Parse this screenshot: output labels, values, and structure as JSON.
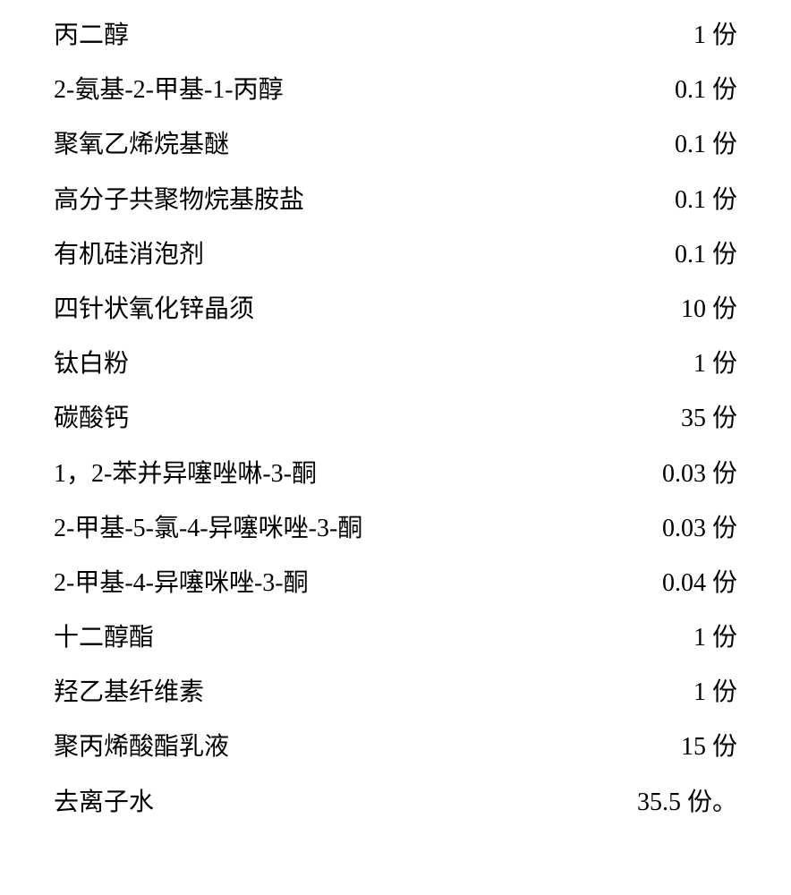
{
  "rows": [
    {
      "name": "丙二醇",
      "value": "1 份"
    },
    {
      "name": "2-氨基-2-甲基-1-丙醇",
      "value": "0.1 份"
    },
    {
      "name": "聚氧乙烯烷基醚",
      "value": "0.1 份"
    },
    {
      "name": "高分子共聚物烷基胺盐",
      "value": "0.1 份"
    },
    {
      "name": "有机硅消泡剂",
      "value": "0.1 份"
    },
    {
      "name": "四针状氧化锌晶须",
      "value": "10 份"
    },
    {
      "name": "钛白粉",
      "value": "1 份"
    },
    {
      "name": "碳酸钙",
      "value": "35 份"
    },
    {
      "name": "1，2-苯并异噻唑啉-3-酮",
      "value": "0.03 份"
    },
    {
      "name": "2-甲基-5-氯-4-异噻咪唑-3-酮",
      "value": "0.03 份"
    },
    {
      "name": "2-甲基-4-异噻咪唑-3-酮",
      "value": "0.04 份"
    },
    {
      "name": "十二醇酯",
      "value": "1 份"
    },
    {
      "name": "羟乙基纤维素",
      "value": "1 份"
    },
    {
      "name": "聚丙烯酸酯乳液",
      "value": "15 份"
    },
    {
      "name": "去离子水",
      "value": "35.5 份。"
    }
  ],
  "styling": {
    "background_color": "#ffffff",
    "text_color": "#000000",
    "font_size": 28,
    "font_family": "SimSun",
    "row_spacing": 22
  }
}
